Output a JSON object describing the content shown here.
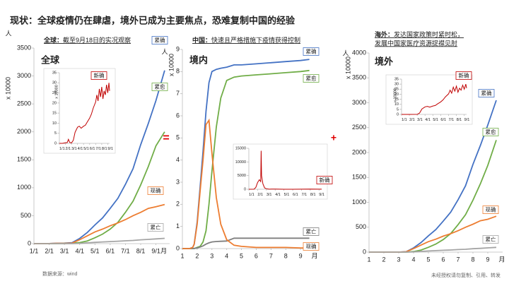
{
  "title": "现状：全球疫情仍在肆虐，境外已成为主要焦点，恐难复制中国的经验",
  "source": "数据来源：wind",
  "disclaimer": "未经授权请勿复制、引用、转发",
  "operators": [
    "=",
    "+"
  ],
  "chart_data": [
    {
      "type": "line",
      "heading": "全球：",
      "subtitle": [
        "截至9月18日的实况观察"
      ],
      "label": "全球",
      "ylabel": "x 10000",
      "yunit": "人",
      "xunit": "月",
      "xlim": [
        1,
        9.9
      ],
      "ylim": [
        0,
        3500
      ],
      "yticks": [
        0,
        500,
        1000,
        1500,
        2000,
        2500,
        3000,
        3500
      ],
      "xticks": [
        {
          "value": 1,
          "label": "1/1"
        },
        {
          "value": 2,
          "label": "2/1"
        },
        {
          "value": 3,
          "label": "3/1"
        },
        {
          "value": 4,
          "label": "4/1"
        },
        {
          "value": 5,
          "label": "5/1"
        },
        {
          "value": 6,
          "label": "6/1"
        },
        {
          "value": 7,
          "label": "7/1"
        },
        {
          "value": 8,
          "label": "8/1"
        },
        {
          "value": 9,
          "label": "9/1"
        }
      ],
      "x": [
        1,
        1.5,
        2,
        2.5,
        3,
        3.5,
        4,
        4.5,
        5,
        5.5,
        6,
        6.5,
        7,
        7.5,
        8,
        8.5,
        9,
        9.57
      ],
      "series": [
        {
          "name": "累确",
          "color": "#4472c4",
          "values": [
            0,
            0,
            1,
            7,
            9,
            17,
            93,
            200,
            335,
            460,
            630,
            810,
            1060,
            1340,
            1770,
            2150,
            2560,
            3100
          ]
        },
        {
          "name": "累愈",
          "color": "#70ad47",
          "values": [
            0,
            0,
            0,
            0.5,
            4,
            7,
            19,
            48,
            105,
            170,
            260,
            380,
            560,
            760,
            1050,
            1380,
            1750,
            2000
          ]
        },
        {
          "name": "现确",
          "color": "#ed7d31",
          "values": [
            0,
            0,
            1,
            6,
            4,
            9,
            70,
            140,
            210,
            260,
            320,
            370,
            430,
            500,
            560,
            630,
            660,
            700
          ]
        },
        {
          "name": "累亡",
          "color": "#a5a5a5",
          "values": [
            0,
            0,
            0,
            0,
            0.3,
            0.6,
            5,
            14,
            23,
            30,
            37,
            43,
            51,
            57,
            68,
            76,
            85,
            95
          ]
        }
      ],
      "inset": {
        "type": "line",
        "xlim": [
          1,
          9.3
        ],
        "ylim": [
          0,
          35
        ],
        "yticks": [
          0,
          5,
          10,
          15,
          20,
          25,
          30,
          35
        ],
        "ylabel": "x 10000",
        "xticks": [
          {
            "value": 1,
            "label": "1/1"
          },
          {
            "value": 2,
            "label": "2/1"
          },
          {
            "value": 3,
            "label": "3/1"
          },
          {
            "value": 4,
            "label": "4/1"
          },
          {
            "value": 5,
            "label": "5/1"
          },
          {
            "value": 6,
            "label": "6/1"
          },
          {
            "value": 7,
            "label": "7/1"
          },
          {
            "value": 8,
            "label": "8/1"
          },
          {
            "value": 9,
            "label": "9/1"
          }
        ],
        "x": [
          1,
          1.5,
          2,
          2.3,
          2.5,
          2.7,
          3,
          3.3,
          3.6,
          4,
          4.3,
          4.6,
          5,
          5.3,
          5.6,
          6,
          6.3,
          6.6,
          7,
          7.2,
          7.4,
          7.6,
          7.8,
          8,
          8.2,
          8.4,
          8.6,
          8.8,
          9,
          9.2,
          9.3
        ],
        "series": [
          {
            "name": "新确",
            "color": "#c00000",
            "values": [
              0,
              0,
              0.3,
              0.4,
              2,
              0.5,
              0.2,
              1.5,
              5.5,
              8,
              8.5,
              7.5,
              8.5,
              9,
              10.5,
              12.5,
              14.5,
              17.5,
              20.5,
              24,
              21,
              27,
              23,
              28,
              22,
              26,
              24,
              29,
              25,
              30,
              26
            ]
          }
        ]
      }
    },
    {
      "type": "line",
      "heading": "中国：",
      "subtitle": [
        "快速且严格措施下疫情获得控制"
      ],
      "label": "境内",
      "ylabel": "x 10000",
      "yunit": "人",
      "xunit": "月",
      "xlim": [
        1,
        10
      ],
      "ylim": [
        0,
        9
      ],
      "yticks": [
        0,
        1,
        2,
        3,
        4,
        5,
        6,
        7,
        8,
        9
      ],
      "xticks": [
        1,
        2,
        3,
        4,
        5,
        6,
        7,
        8,
        9
      ],
      "x": [
        1,
        1.5,
        1.7,
        1.8,
        2,
        2.2,
        2.4,
        2.6,
        2.8,
        3,
        3.3,
        3.6,
        4,
        4.5,
        5,
        6,
        7,
        8,
        9,
        9.6
      ],
      "series": [
        {
          "name": "累确",
          "color": "#4472c4",
          "values": [
            0,
            0,
            0.05,
            0.2,
            1.2,
            2.8,
            4.4,
            6.2,
            7.5,
            8,
            8.1,
            8.15,
            8.2,
            8.3,
            8.3,
            8.35,
            8.4,
            8.45,
            8.5,
            8.55
          ]
        },
        {
          "name": "累愈",
          "color": "#70ad47",
          "values": [
            0,
            0,
            0,
            0,
            0.05,
            0.1,
            0.3,
            0.8,
            2,
            3.5,
            5.5,
            6.8,
            7.6,
            7.75,
            7.8,
            7.85,
            7.9,
            7.95,
            8,
            8.05
          ]
        },
        {
          "name": "累亡",
          "color": "#7f7f7f",
          "values": [
            0,
            0,
            0,
            0.005,
            0.03,
            0.07,
            0.12,
            0.2,
            0.26,
            0.3,
            0.32,
            0.33,
            0.34,
            0.47,
            0.47,
            0.47,
            0.47,
            0.47,
            0.47,
            0.47
          ]
        },
        {
          "name": "现确",
          "color": "#ed7d31",
          "values": [
            0,
            0,
            0.05,
            0.2,
            1.1,
            2.6,
            4,
            5.6,
            5.8,
            4.3,
            2.3,
            1.1,
            0.4,
            0.15,
            0.1,
            0.05,
            0.05,
            0.05,
            0.03,
            0.03
          ]
        }
      ],
      "inset": {
        "type": "line",
        "xlim": [
          1,
          9.3
        ],
        "ylim": [
          0,
          15000
        ],
        "yticks": [
          0,
          5000,
          10000,
          15000
        ],
        "xticks": [
          {
            "value": 1,
            "label": "1/1"
          },
          {
            "value": 2,
            "label": "2/1"
          },
          {
            "value": 3,
            "label": "3/1"
          },
          {
            "value": 4,
            "label": "4/1"
          },
          {
            "value": 5,
            "label": "5/1"
          },
          {
            "value": 6,
            "label": "6/1"
          },
          {
            "value": 7,
            "label": "7/1"
          },
          {
            "value": 8,
            "label": "8/1"
          },
          {
            "value": 9,
            "label": "9/1"
          }
        ],
        "x": [
          1,
          1.6,
          1.8,
          2,
          2.2,
          2.35,
          2.4,
          2.45,
          2.6,
          2.8,
          3,
          3.3,
          3.6,
          4,
          5,
          6,
          7,
          8,
          9,
          9.3
        ],
        "series": [
          {
            "name": "新确",
            "color": "#c00000",
            "values": [
              0,
              20,
              700,
              2500,
              3500,
              2800,
              14100,
              5000,
              2000,
              500,
              200,
              30,
              40,
              80,
              5,
              10,
              20,
              80,
              30,
              30
            ]
          }
        ]
      }
    },
    {
      "type": "line",
      "heading": "海外：",
      "subtitle": [
        "发达国家政策时紧时松，",
        "发展中国家医疗资源捉襟见肘"
      ],
      "label": "境外",
      "ylabel": "x 10000",
      "yunit": "人",
      "xunit": "月",
      "xlim": [
        1,
        10
      ],
      "ylim": [
        0,
        4000
      ],
      "yticks": [
        0,
        500,
        1000,
        1500,
        2000,
        2500,
        3000,
        3500,
        4000
      ],
      "xticks": [
        1,
        2,
        3,
        4,
        5,
        6,
        7,
        8,
        9
      ],
      "x": [
        1,
        1.5,
        2,
        2.5,
        3,
        3.5,
        4,
        4.5,
        5,
        5.5,
        6,
        6.5,
        7,
        7.5,
        8,
        8.5,
        9,
        9.57
      ],
      "series": [
        {
          "name": "累确",
          "color": "#4472c4",
          "values": [
            0,
            0,
            0,
            0,
            0.1,
            8.8,
            85,
            192,
            327,
            452,
            622,
            802,
            1052,
            1332,
            1762,
            2142,
            2552,
            3050
          ]
        },
        {
          "name": "累愈",
          "color": "#70ad47",
          "values": [
            0,
            0,
            0,
            0,
            0,
            0.5,
            12,
            41,
            97,
            162,
            252,
            372,
            552,
            752,
            1042,
            1372,
            1742,
            2250
          ]
        },
        {
          "name": "现确",
          "color": "#ed7d31",
          "values": [
            0,
            0,
            0,
            0,
            0.1,
            7.5,
            70,
            140,
            210,
            260,
            320,
            370,
            430,
            500,
            560,
            630,
            660,
            720
          ]
        },
        {
          "name": "累亡",
          "color": "#a5a5a5",
          "values": [
            0,
            0,
            0,
            0,
            0,
            0.3,
            4.7,
            13.7,
            22.7,
            29.7,
            36.7,
            42.7,
            50.7,
            56.7,
            67.7,
            75.7,
            84.7,
            95
          ]
        }
      ],
      "inset": {
        "type": "line",
        "xlim": [
          1,
          9.3
        ],
        "ylim": [
          0,
          35
        ],
        "yticks": [
          0,
          5,
          10,
          15,
          20,
          25,
          30,
          35
        ],
        "ylabel": "x 10000",
        "xticks": [
          {
            "value": 1,
            "label": "1/1"
          },
          {
            "value": 2,
            "label": "2/1"
          },
          {
            "value": 3,
            "label": "3/1"
          },
          {
            "value": 4,
            "label": "4/1"
          },
          {
            "value": 5,
            "label": "5/1"
          },
          {
            "value": 6,
            "label": "6/1"
          },
          {
            "value": 7,
            "label": "7/1"
          },
          {
            "value": 8,
            "label": "8/1"
          },
          {
            "value": 9,
            "label": "9/1"
          }
        ],
        "x": [
          1,
          2,
          3,
          3.3,
          3.6,
          4,
          4.3,
          4.6,
          5,
          5.3,
          5.6,
          6,
          6.3,
          6.6,
          7,
          7.2,
          7.4,
          7.6,
          7.8,
          8,
          8.2,
          8.4,
          8.6,
          8.8,
          9,
          9.2,
          9.3
        ],
        "series": [
          {
            "name": "新确",
            "color": "#c00000",
            "values": [
              0,
              0,
              0.1,
              1.3,
              5.3,
              7.5,
              8,
              7.2,
              8.3,
              8.8,
              10.4,
              12.4,
              14.4,
              17.4,
              20.4,
              24,
              21,
              27,
              23,
              28,
              22,
              26,
              24,
              29,
              25,
              30,
              26
            ]
          }
        ]
      }
    }
  ]
}
